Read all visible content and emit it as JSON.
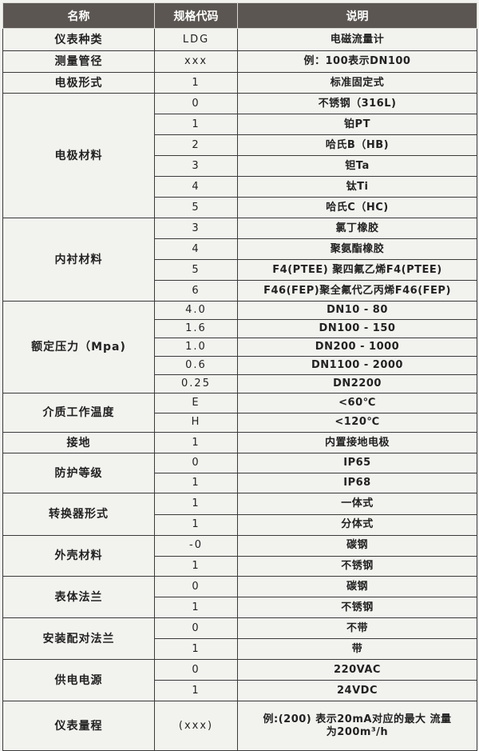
{
  "header": {
    "name": "名称",
    "code": "规格代码",
    "desc": "说明"
  },
  "groups": [
    {
      "name": "仪表种类",
      "h": 28,
      "items": [
        {
          "code": "LDG",
          "desc": "电磁流量计"
        }
      ]
    },
    {
      "name": "测量管径",
      "h": 27,
      "items": [
        {
          "code": "xxx",
          "desc": "例：100表示DN100"
        }
      ]
    },
    {
      "name": "电极形式",
      "h": 26,
      "items": [
        {
          "code": "1",
          "desc": "标准固定式"
        }
      ]
    },
    {
      "name": "电极材料",
      "h": 26,
      "items": [
        {
          "code": "0",
          "desc": "不锈钢（316L)"
        },
        {
          "code": "1",
          "desc": "铂PT"
        },
        {
          "code": "2",
          "desc": "哈氏B（HB)"
        },
        {
          "code": "3",
          "desc": "钽Ta"
        },
        {
          "code": "4",
          "desc": "钛Ti"
        },
        {
          "code": "5",
          "desc": "哈氏C（HC)"
        }
      ]
    },
    {
      "name": "内衬材料",
      "h": 26,
      "items": [
        {
          "code": "3",
          "desc": "氯丁橡胶"
        },
        {
          "code": "4",
          "desc": "聚氨酯橡胶"
        },
        {
          "code": "5",
          "desc": "F4(PTEE) 聚四氟乙烯F4(PTEE)"
        },
        {
          "code": "6",
          "desc": "F46(FEP)聚全氟代乙丙烯F46(FEP)"
        }
      ]
    },
    {
      "name": "额定压力（Mpa)",
      "h": 23,
      "items": [
        {
          "code": "4.0",
          "desc": "DN10 - 80"
        },
        {
          "code": "1.6",
          "desc": "DN100 - 150"
        },
        {
          "code": "1.0",
          "desc": "DN200 - 1000"
        },
        {
          "code": "0.6",
          "desc": "DN1100 - 2000"
        },
        {
          "code": "0.25",
          "desc": "DN2200"
        }
      ]
    },
    {
      "name": "介质工作温度",
      "h": 24.5,
      "items": [
        {
          "code": "E",
          "desc": "<60℃"
        },
        {
          "code": "H",
          "desc": "<120℃"
        }
      ]
    },
    {
      "name": "接地",
      "h": 26,
      "items": [
        {
          "code": "1",
          "desc": "内置接地电极"
        }
      ]
    },
    {
      "name": "防护等级",
      "h": 25,
      "items": [
        {
          "code": "0",
          "desc": "IP65"
        },
        {
          "code": "1",
          "desc": "IP68"
        }
      ]
    },
    {
      "name": "转换器形式",
      "h": 26.5,
      "items": [
        {
          "code": "1",
          "desc": "一体式"
        },
        {
          "code": "1",
          "desc": "分体式"
        }
      ]
    },
    {
      "name": "外壳材料",
      "h": 25.5,
      "items": [
        {
          "code": "-0",
          "desc": "碳钢"
        },
        {
          "code": "1",
          "desc": "不锈钢"
        }
      ]
    },
    {
      "name": "表体法兰",
      "h": 26,
      "items": [
        {
          "code": "0",
          "desc": "碳钢"
        },
        {
          "code": "1",
          "desc": "不锈钢"
        }
      ]
    },
    {
      "name": "安装配对法兰",
      "h": 26,
      "items": [
        {
          "code": "0",
          "desc": "不带"
        },
        {
          "code": "1",
          "desc": "带"
        }
      ]
    },
    {
      "name": "供电电源",
      "h": 26,
      "items": [
        {
          "code": "0",
          "desc": "220VAC"
        },
        {
          "code": "1",
          "desc": "24VDC"
        }
      ]
    },
    {
      "name": "仪表量程",
      "h": 62,
      "items": [
        {
          "code": "(xxx)",
          "desc": "例:(200) 表示20mA对应的最大 流量为200m³/h"
        }
      ]
    }
  ]
}
